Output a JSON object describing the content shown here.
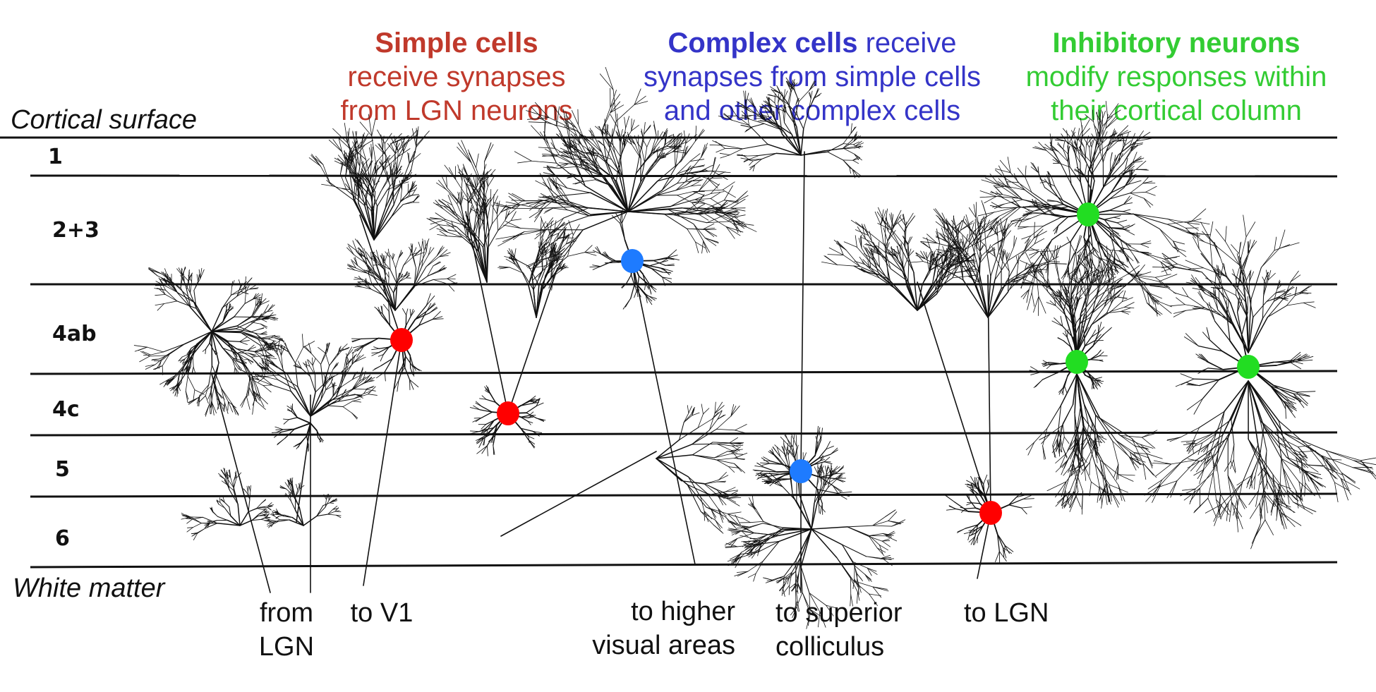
{
  "headings": {
    "simple": {
      "bold": "Simple cells",
      "line2": "receive synapses",
      "line3": "from LGN neurons",
      "color": "#c0392b"
    },
    "complex": {
      "bold": "Complex cells",
      "rest": " receive",
      "line2": "synapses from simple cells",
      "line3": "and other complex cells",
      "color": "#3434c8"
    },
    "inhibitory": {
      "bold": "Inhibitory neurons",
      "line2": "modify responses within",
      "line3": "their cortical column",
      "color": "#33cc33"
    }
  },
  "surface_label": "Cortical surface",
  "white_matter_label": "White matter",
  "layers": [
    "1",
    "2+3",
    "4ab",
    "4c",
    "5",
    "6"
  ],
  "projections": {
    "from_lgn": [
      "from",
      "LGN"
    ],
    "to_v1": "to V1",
    "to_higher": [
      "to higher",
      "visual areas"
    ],
    "to_sc": [
      "to superior",
      "colliculus"
    ],
    "to_lgn": "to LGN"
  },
  "soma_colors": {
    "simple": "#ff0000",
    "complex": "#1e7bff",
    "inhibitory": "#22dd22"
  }
}
